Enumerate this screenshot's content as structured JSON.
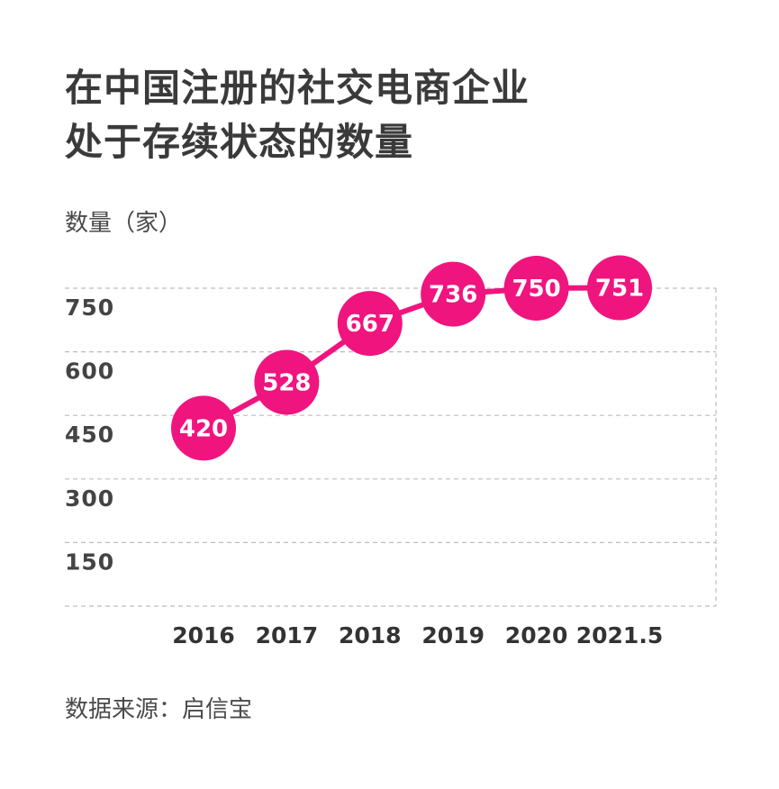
{
  "title_lines": [
    "在中国注册的社交电商企业",
    "处于存续状态的数量"
  ],
  "unit_label": "数量（家）",
  "source": "数据来源：启信宝",
  "colors": {
    "accent": "#f0147f",
    "grid": "#bdbdbd",
    "text": "#3c3c3c"
  },
  "chart_data": {
    "type": "line",
    "title": "在中国注册的社交电商企业处于存续状态的数量",
    "ylabel": "数量（家）",
    "xlabel": "",
    "categories": [
      "2016",
      "2017",
      "2018",
      "2019",
      "2020",
      "2021.5"
    ],
    "values": [
      420,
      528,
      667,
      736,
      750,
      751
    ],
    "yticks": [
      150,
      300,
      450,
      600,
      750
    ],
    "ylim": [
      0,
      750
    ],
    "grid": true,
    "grid_style": "dashed",
    "data_labels": true,
    "marker": "circle"
  }
}
